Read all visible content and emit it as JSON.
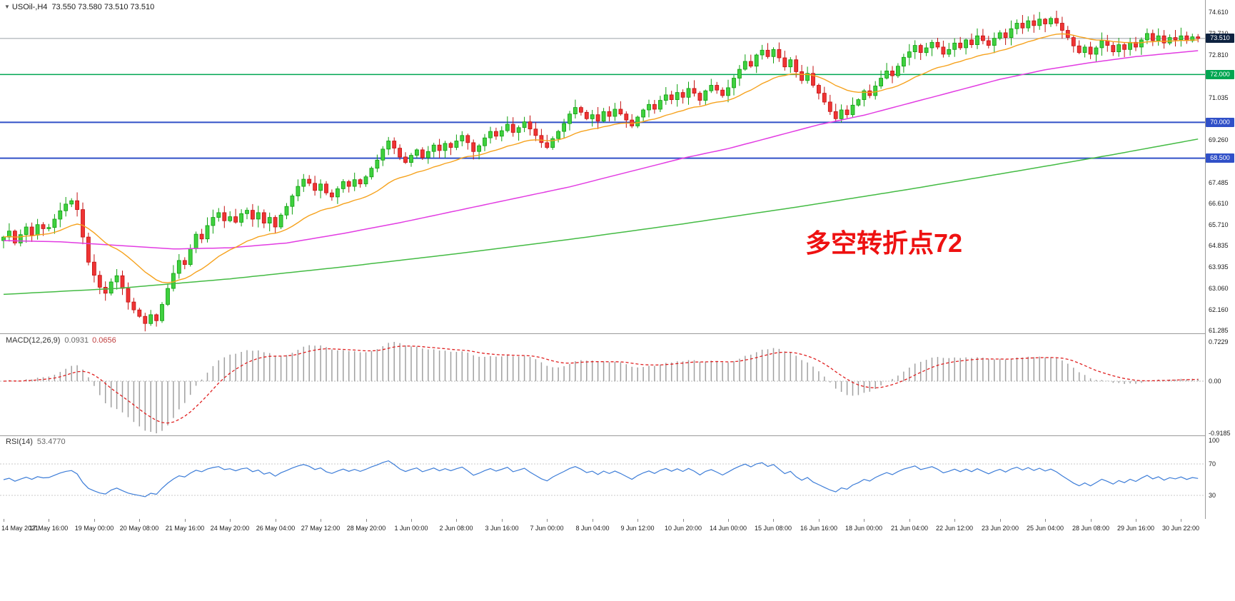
{
  "chart_data": {
    "type": "candlestick",
    "platform_style": "mt4",
    "symbol": "USOil-,H4",
    "ohlc_text": "73.550 73.580 73.510 73.510",
    "marker_icon": "down-triangle",
    "current_price": 73.51,
    "current_price_label": "73.510",
    "first_open": 65.05,
    "bars_per_tick": 8,
    "x_ticks": [
      "14 May 2021",
      "17 May 16:00",
      "19 May 00:00",
      "20 May 08:00",
      "21 May 16:00",
      "24 May 20:00",
      "26 May 04:00",
      "27 May 12:00",
      "28 May 20:00",
      "1 Jun 00:00",
      "2 Jun 08:00",
      "3 Jun 16:00",
      "7 Jun 00:00",
      "8 Jun 04:00",
      "9 Jun 12:00",
      "10 Jun 20:00",
      "14 Jun 00:00",
      "15 Jun 08:00",
      "16 Jun 16:00",
      "18 Jun 00:00",
      "21 Jun 04:00",
      "22 Jun 12:00",
      "23 Jun 20:00",
      "25 Jun 04:00",
      "28 Jun 08:00",
      "29 Jun 16:00",
      "30 Jun 22:00"
    ],
    "closes": [
      65.2,
      65.45,
      64.95,
      65.3,
      65.62,
      65.28,
      65.72,
      65.55,
      65.6,
      65.95,
      66.3,
      66.58,
      66.72,
      66.35,
      65.2,
      64.15,
      63.6,
      63.1,
      62.85,
      63.32,
      63.58,
      63.05,
      62.48,
      62.15,
      61.88,
      61.58,
      61.95,
      61.7,
      62.38,
      63.05,
      63.68,
      64.22,
      64.05,
      64.72,
      65.32,
      65.12,
      65.68,
      66.02,
      66.22,
      65.88,
      66.05,
      65.82,
      66.18,
      66.32,
      65.95,
      66.22,
      65.78,
      66.02,
      65.62,
      66.12,
      66.48,
      66.92,
      67.32,
      67.62,
      67.45,
      67.15,
      67.42,
      67.05,
      66.88,
      67.22,
      67.52,
      67.32,
      67.6,
      67.42,
      67.72,
      68.08,
      68.42,
      68.88,
      69.22,
      68.92,
      68.55,
      68.32,
      68.62,
      68.85,
      68.52,
      68.78,
      69.05,
      68.82,
      69.12,
      68.95,
      69.22,
      69.45,
      69.15,
      68.78,
      69.02,
      69.35,
      69.62,
      69.42,
      69.65,
      69.92,
      69.58,
      69.78,
      70.02,
      69.72,
      69.45,
      69.15,
      68.95,
      69.32,
      69.62,
      69.95,
      70.35,
      70.62,
      70.42,
      70.15,
      70.32,
      70.05,
      70.45,
      70.25,
      70.55,
      70.35,
      70.1,
      69.85,
      70.22,
      70.52,
      70.75,
      70.55,
      70.92,
      71.15,
      70.95,
      71.25,
      71.05,
      71.42,
      71.22,
      70.92,
      71.32,
      71.55,
      71.35,
      71.12,
      71.45,
      71.85,
      72.22,
      72.55,
      72.35,
      72.82,
      73.02,
      72.75,
      73.05,
      72.7,
      72.32,
      72.62,
      72.12,
      71.75,
      72.05,
      71.55,
      71.22,
      70.85,
      70.45,
      70.15,
      70.52,
      70.32,
      70.72,
      70.95,
      71.32,
      71.12,
      71.52,
      71.85,
      72.15,
      71.95,
      72.35,
      72.72,
      72.95,
      73.22,
      72.92,
      73.12,
      73.35,
      73.15,
      72.85,
      73.05,
      73.32,
      73.12,
      73.45,
      73.25,
      73.62,
      73.42,
      73.22,
      73.52,
      73.75,
      73.55,
      73.92,
      74.15,
      73.95,
      74.25,
      74.05,
      74.32,
      74.12,
      74.35,
      74.15,
      73.85,
      73.55,
      73.2,
      72.92,
      73.15,
      72.85,
      73.12,
      73.42,
      73.22,
      72.95,
      73.25,
      73.05,
      73.35,
      73.15,
      73.45,
      73.72,
      73.42,
      73.62,
      73.32,
      73.55,
      73.45,
      73.62,
      73.42,
      73.58,
      73.51
    ],
    "price_axis": {
      "visible_max": 75.12,
      "visible_min": 61.17,
      "labels": [
        "74.610",
        "73.710",
        "72.810",
        "71.035",
        "69.260",
        "67.485",
        "66.610",
        "65.710",
        "64.835",
        "63.935",
        "63.060",
        "62.160",
        "61.285"
      ]
    },
    "hlines": [
      {
        "price": 72.0,
        "label": "72.000",
        "color": "#00a651",
        "width": 1.5
      },
      {
        "price": 70.0,
        "label": "70.000",
        "color": "#3050c8",
        "width": 2
      },
      {
        "price": 68.5,
        "label": "68.500",
        "color": "#3050c8",
        "width": 2
      }
    ],
    "ma_lines": {
      "fast": {
        "name": "ma-fast-orange",
        "type": "ema",
        "period": 21,
        "color": "#f6a21d"
      },
      "mid": {
        "name": "ma-mid-magenta",
        "color": "#e23ce2",
        "anchors": [
          [
            0,
            65.05
          ],
          [
            10,
            65.0
          ],
          [
            20,
            64.85
          ],
          [
            30,
            64.7
          ],
          [
            40,
            64.75
          ],
          [
            50,
            64.95
          ],
          [
            60,
            65.35
          ],
          [
            70,
            65.8
          ],
          [
            80,
            66.3
          ],
          [
            90,
            66.8
          ],
          [
            100,
            67.3
          ],
          [
            110,
            67.9
          ],
          [
            120,
            68.5
          ],
          [
            128,
            68.9
          ],
          [
            136,
            69.4
          ],
          [
            144,
            69.9
          ],
          [
            152,
            70.3
          ],
          [
            160,
            70.8
          ],
          [
            168,
            71.3
          ],
          [
            176,
            71.8
          ],
          [
            184,
            72.2
          ],
          [
            192,
            72.5
          ],
          [
            200,
            72.75
          ],
          [
            211,
            73.0
          ]
        ]
      },
      "slow": {
        "name": "ma-slow-green",
        "color": "#44bb44",
        "anchors": [
          [
            0,
            62.8
          ],
          [
            20,
            63.05
          ],
          [
            40,
            63.45
          ],
          [
            60,
            63.95
          ],
          [
            80,
            64.5
          ],
          [
            100,
            65.1
          ],
          [
            120,
            65.75
          ],
          [
            140,
            66.45
          ],
          [
            160,
            67.2
          ],
          [
            180,
            68.0
          ],
          [
            196,
            68.65
          ],
          [
            211,
            69.3
          ]
        ]
      }
    },
    "macd": {
      "label": "MACD(12,26,9)",
      "value_main": "0.0931",
      "value_signal": "0.0656",
      "params": [
        12,
        26,
        9
      ],
      "axis_labels": [
        "0.7229",
        "0.00",
        "-0.9185"
      ]
    },
    "rsi": {
      "label": "RSI(14)",
      "value": "53.4770",
      "period": 14,
      "axis_labels": [
        "100",
        "70",
        "30"
      ],
      "levels": [
        70,
        30
      ]
    },
    "annotation": {
      "text": "多空转折点72",
      "color": "#ee1111"
    },
    "colors": {
      "background": "#ffffff",
      "up_fill": "#3fd03f",
      "up_stroke": "#0fa00f",
      "down_fill": "#ef3434",
      "down_stroke": "#c31212",
      "macd_hist": "#a0a0a0",
      "macd_signal": "#e02020",
      "rsi_line": "#3d7dd8",
      "axis_text": "#1a1a1a",
      "separator": "#9a9a9a",
      "current_price_line": "#9aa0a6",
      "current_badge_bg": "#0e2240"
    }
  }
}
